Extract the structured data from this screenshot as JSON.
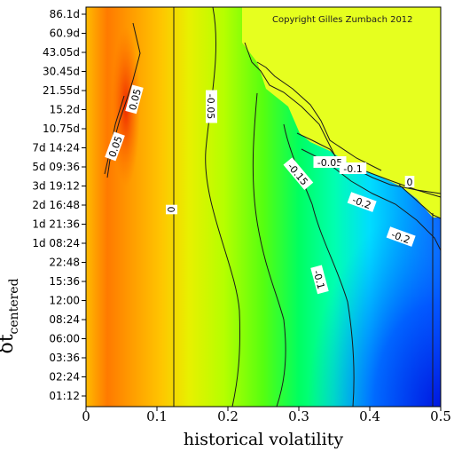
{
  "chart_data": {
    "type": "heatmap",
    "title": "",
    "annotation": "Copyright Gilles Zumbach 2012",
    "xlabel": "historical volatility",
    "ylabel_symbol": "δt",
    "ylabel_subscript": "centered",
    "xlim": [
      0,
      0.5
    ],
    "x_ticks": [
      "0",
      "0.1",
      "0.2",
      "0.3",
      "0.4",
      "0.5"
    ],
    "y_ticks": [
      "01:12",
      "02:24",
      "03:36",
      "06:00",
      "08:24",
      "12:00",
      "15:36",
      "22:48",
      "1d 08:24",
      "1d 21:36",
      "2d 16:48",
      "3d 19:12",
      "5d 09:36",
      "7d 14:24",
      "10.75d",
      "15.2d",
      "21.55d",
      "30.45d",
      "43.05d",
      "60.9d",
      "86.1d"
    ],
    "colorscale": [
      "#ff2200",
      "#ff8800",
      "#ffff00",
      "#00ff00",
      "#00ffff",
      "#0000ff"
    ],
    "contour_labels": [
      "0.05",
      "0.05",
      "0",
      "-0.05",
      "-0.1",
      "-0.15",
      "-0.05",
      "-0.1",
      "0",
      "-0.2",
      "-0.2"
    ],
    "no_data_color": "#e6ff1f"
  }
}
